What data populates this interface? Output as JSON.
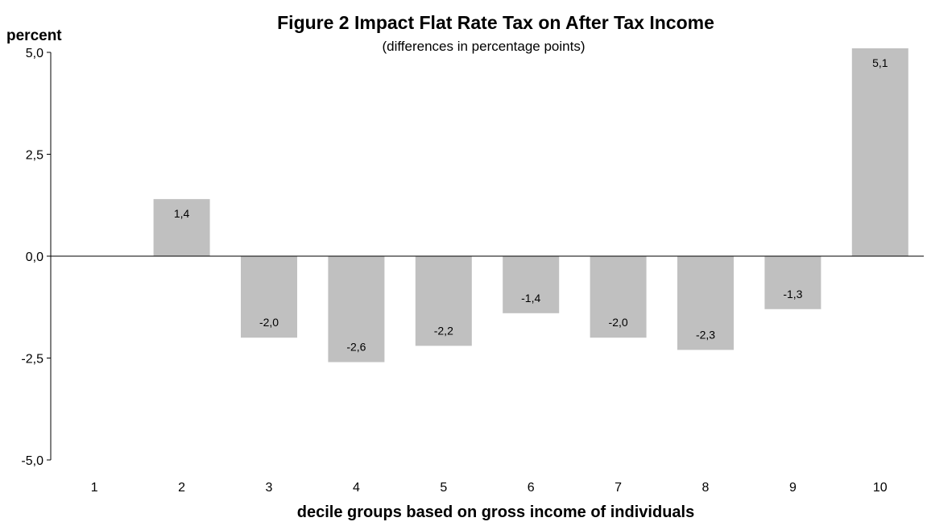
{
  "chart_data": {
    "type": "bar",
    "title": "Figure 2  Impact Flat Rate Tax on After Tax Income",
    "subtitle": "(differences in percentage points)",
    "ylabel": "percent",
    "xlabel": "decile groups based on gross income of individuals",
    "categories": [
      "1",
      "2",
      "3",
      "4",
      "5",
      "6",
      "7",
      "8",
      "9",
      "10"
    ],
    "values": [
      0,
      1.4,
      -2.0,
      -2.6,
      -2.2,
      -1.4,
      -2.0,
      -2.3,
      -1.3,
      5.1
    ],
    "data_labels": [
      "",
      "1,4",
      "-2,0",
      "-2,6",
      "-2,2",
      "-1,4",
      "-2,0",
      "-2,3",
      "-1,3",
      "5,1"
    ],
    "ylim": [
      -5.0,
      5.0
    ],
    "yticks": [
      5.0,
      2.5,
      0.0,
      -2.5,
      -5.0
    ],
    "ytick_labels": [
      "5,0",
      "2,5",
      "0,0",
      "-2,5",
      "-5,0"
    ],
    "bar_color": "#c0c0c0",
    "grid": false,
    "legend": "none"
  }
}
